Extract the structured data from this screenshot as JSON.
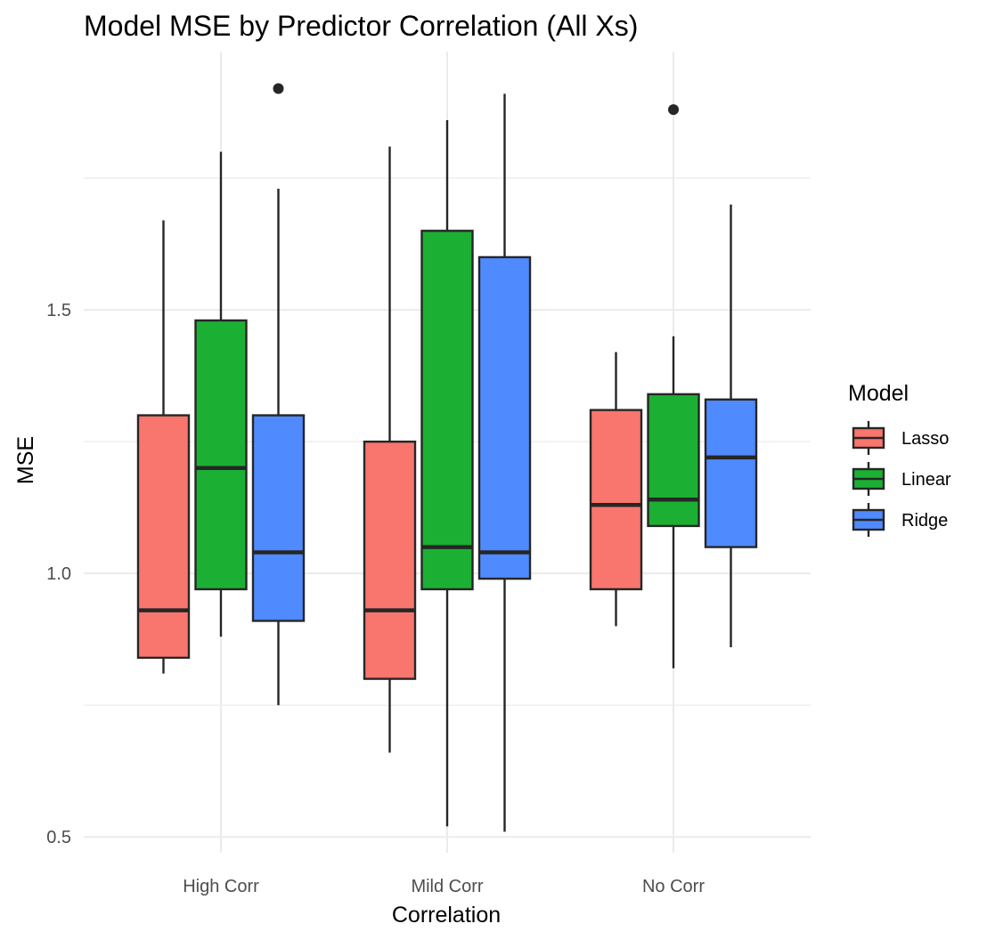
{
  "chart_data": {
    "type": "boxplot",
    "title": "Model MSE by Predictor Correlation (All Xs)",
    "xlabel": "Correlation",
    "ylabel": "MSE",
    "categories": [
      "High Corr",
      "Mild Corr",
      "No Corr"
    ],
    "ylim": [
      0.47,
      1.99
    ],
    "y_ticks": [
      0.5,
      1.0,
      1.5
    ],
    "y_tick_labels": [
      "0.5",
      "1.0",
      "1.5"
    ],
    "grid": true,
    "legend": {
      "title": "Model",
      "position": "right"
    },
    "series": [
      {
        "name": "Lasso",
        "color": "#F8766D",
        "boxes": [
          {
            "category": "High Corr",
            "lower_whisker": 0.81,
            "q1": 0.84,
            "median": 0.93,
            "q3": 1.3,
            "upper_whisker": 1.67,
            "outliers": []
          },
          {
            "category": "Mild Corr",
            "lower_whisker": 0.66,
            "q1": 0.8,
            "median": 0.93,
            "q3": 1.25,
            "upper_whisker": 1.81,
            "outliers": []
          },
          {
            "category": "No Corr",
            "lower_whisker": 0.9,
            "q1": 0.97,
            "median": 1.13,
            "q3": 1.31,
            "upper_whisker": 1.42,
            "outliers": []
          }
        ]
      },
      {
        "name": "Linear",
        "color": "#1BB033",
        "boxes": [
          {
            "category": "High Corr",
            "lower_whisker": 0.88,
            "q1": 0.97,
            "median": 1.2,
            "q3": 1.48,
            "upper_whisker": 1.8,
            "outliers": []
          },
          {
            "category": "Mild Corr",
            "lower_whisker": 0.52,
            "q1": 0.97,
            "median": 1.05,
            "q3": 1.65,
            "upper_whisker": 1.86,
            "outliers": []
          },
          {
            "category": "No Corr",
            "lower_whisker": 0.82,
            "q1": 1.09,
            "median": 1.14,
            "q3": 1.34,
            "upper_whisker": 1.45,
            "outliers": [
              1.88
            ]
          }
        ]
      },
      {
        "name": "Ridge",
        "color": "#508AFF",
        "boxes": [
          {
            "category": "High Corr",
            "lower_whisker": 0.75,
            "q1": 0.91,
            "median": 1.04,
            "q3": 1.3,
            "upper_whisker": 1.73,
            "outliers": [
              1.92
            ]
          },
          {
            "category": "Mild Corr",
            "lower_whisker": 0.51,
            "q1": 0.99,
            "median": 1.04,
            "q3": 1.6,
            "upper_whisker": 1.91,
            "outliers": []
          },
          {
            "category": "No Corr",
            "lower_whisker": 0.86,
            "q1": 1.05,
            "median": 1.22,
            "q3": 1.33,
            "upper_whisker": 1.7,
            "outliers": []
          }
        ]
      }
    ]
  }
}
